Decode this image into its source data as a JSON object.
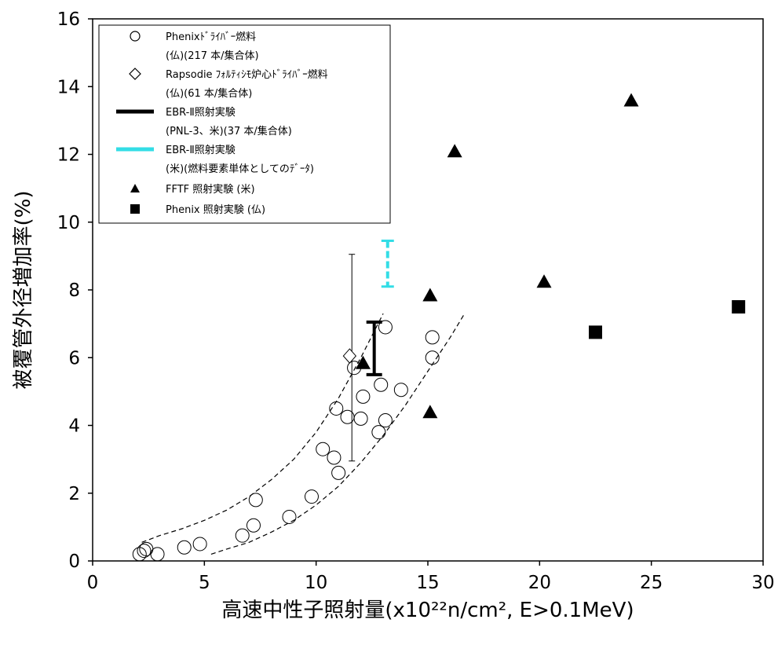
{
  "chart_data": {
    "type": "scatter",
    "xlabel": "高速中性子照射量(x10²²n/cm², E>0.1MeV)",
    "ylabel": "被覆管外径増加率(%)",
    "xlim": [
      0,
      30
    ],
    "ylim": [
      0,
      16
    ],
    "x_ticks": [
      "0",
      "5",
      "10",
      "15",
      "20",
      "25",
      "30"
    ],
    "y_ticks": [
      "0",
      "2",
      "4",
      "6",
      "8",
      "10",
      "12",
      "14",
      "16"
    ],
    "grid": false,
    "legend_position": "top-left",
    "legend": [
      {
        "marker": "circle-open",
        "lines": [
          "Phenixﾄﾞﾗｲﾊﾞｰ燃料",
          "(仏)(217 本/集合体)"
        ]
      },
      {
        "marker": "diamond-open",
        "lines": [
          "Rapsodie ﾌｫﾙﾃｨｼﾓ炉心ﾄﾞﾗｲﾊﾞｰ燃料",
          "(仏)(61 本/集合体)"
        ]
      },
      {
        "marker": "bar-black",
        "lines": [
          "EBR-Ⅱ照射実験",
          "(PNL-3、米)(37 本/集合体)"
        ]
      },
      {
        "marker": "bar-cyan",
        "lines": [
          "EBR-Ⅱ照射実験",
          "(米)(燃料要素単体としてのﾃﾞｰﾀ)"
        ]
      },
      {
        "marker": "triangle-filled",
        "lines": [
          "FFTF 照射実験 (米)"
        ]
      },
      {
        "marker": "square-filled",
        "lines": [
          "Phenix 照射実験 (仏)"
        ]
      }
    ],
    "series": [
      {
        "name": "Phenixﾄﾞﾗｲﾊﾞｰ燃料",
        "marker": "circle-open",
        "x": [
          2.1,
          2.3,
          2.4,
          2.9,
          4.1,
          4.8,
          6.7,
          7.2,
          7.3,
          8.8,
          9.8,
          10.3,
          10.8,
          10.9,
          11.0,
          11.4,
          11.7,
          12.0,
          12.1,
          12.8,
          12.9,
          13.1,
          13.1,
          13.8,
          15.2,
          15.2
        ],
        "y": [
          0.2,
          0.3,
          0.35,
          0.2,
          0.4,
          0.5,
          0.75,
          1.05,
          1.8,
          1.3,
          1.9,
          3.3,
          3.05,
          4.5,
          2.6,
          4.25,
          5.7,
          4.2,
          4.85,
          3.8,
          5.2,
          4.15,
          6.9,
          5.05,
          6.0,
          6.6
        ]
      },
      {
        "name": "Rapsodie ﾌｫﾙﾃｨｼﾓ炉心ﾄﾞﾗｲﾊﾞｰ燃料",
        "marker": "diamond-open",
        "x": [
          11.5
        ],
        "y": [
          6.05
        ]
      },
      {
        "name": "FFTF 照射実験 (米)",
        "marker": "triangle-filled",
        "x": [
          12.1,
          15.1,
          15.1,
          16.2,
          20.2,
          24.1
        ],
        "y": [
          5.85,
          7.85,
          4.4,
          12.1,
          8.25,
          13.6
        ]
      },
      {
        "name": "Phenix 照射実験 (仏)",
        "marker": "square-filled",
        "x": [
          22.5,
          28.9
        ],
        "y": [
          6.75,
          7.5
        ]
      }
    ],
    "range_bars": [
      {
        "name": "EBR-Ⅱ照射実験 (PNL-3、米)",
        "style": "thick-black",
        "x": 12.6,
        "y_low": 5.5,
        "y_high": 7.05
      },
      {
        "name": "EBR-Ⅱ照射実験 (米)",
        "style": "dashed-cyan",
        "x": 13.2,
        "y_low": 8.1,
        "y_high": 9.45
      },
      {
        "style": "thin-black",
        "x": 11.6,
        "y_low": 2.95,
        "y_high": 9.05
      }
    ],
    "envelope": [
      {
        "style": "dashed",
        "x": [
          2.2,
          3.0,
          4.0,
          5.0,
          6.0,
          7.0,
          8.0,
          9.0,
          10.0,
          11.0,
          12.0,
          13.0
        ],
        "y": [
          0.55,
          0.75,
          0.95,
          1.2,
          1.5,
          1.9,
          2.4,
          3.0,
          3.8,
          4.8,
          6.0,
          7.3
        ]
      },
      {
        "style": "dashed",
        "x": [
          5.3,
          6.0,
          7.0,
          8.0,
          9.0,
          10.0,
          11.0,
          12.0,
          13.0,
          14.0,
          15.0,
          16.0,
          16.6
        ],
        "y": [
          0.2,
          0.35,
          0.55,
          0.85,
          1.2,
          1.65,
          2.2,
          2.9,
          3.7,
          4.6,
          5.6,
          6.6,
          7.25
        ]
      }
    ]
  }
}
